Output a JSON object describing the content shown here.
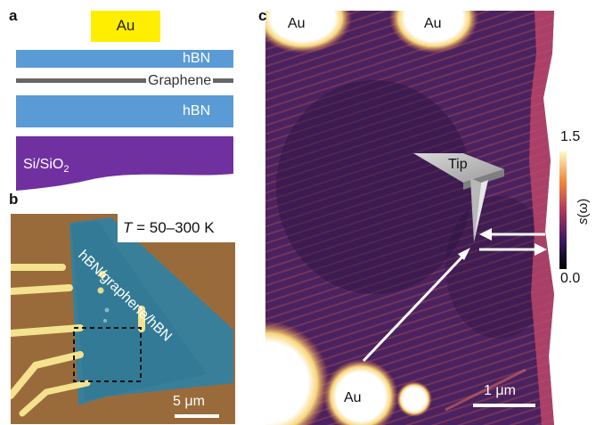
{
  "panels": {
    "a": {
      "label": "a",
      "layers": {
        "gold": "Au",
        "top_hbn": "hBN",
        "graphene": "Graphene",
        "bottom_hbn": "hBN",
        "substrate_main": "Si/SiO",
        "substrate_sub": "2"
      }
    },
    "b": {
      "label": "b",
      "temp_var": "T",
      "temp_range": " = 50–300 K",
      "stack_label": "hBN/graphene/hBN",
      "scalebar": "5 μm"
    },
    "c": {
      "label": "c",
      "au_top_left": "Au",
      "au_top_mid": "Au",
      "au_bottom": "Au",
      "tip": "Tip",
      "scalebar": "1 μm",
      "colorbar_max": "1.5",
      "colorbar_min": "0.0",
      "colorbar_title_s": "s",
      "colorbar_title_omega": "(ω)"
    }
  },
  "colors": {
    "hbn": "#5b9bd5",
    "gold": "#ffee00",
    "graphene": "#666666",
    "substrate": "#7030a0",
    "map_base": "#4a2260",
    "optical_bg": "#a2713e",
    "optical_flake": "#3a7f9a"
  }
}
